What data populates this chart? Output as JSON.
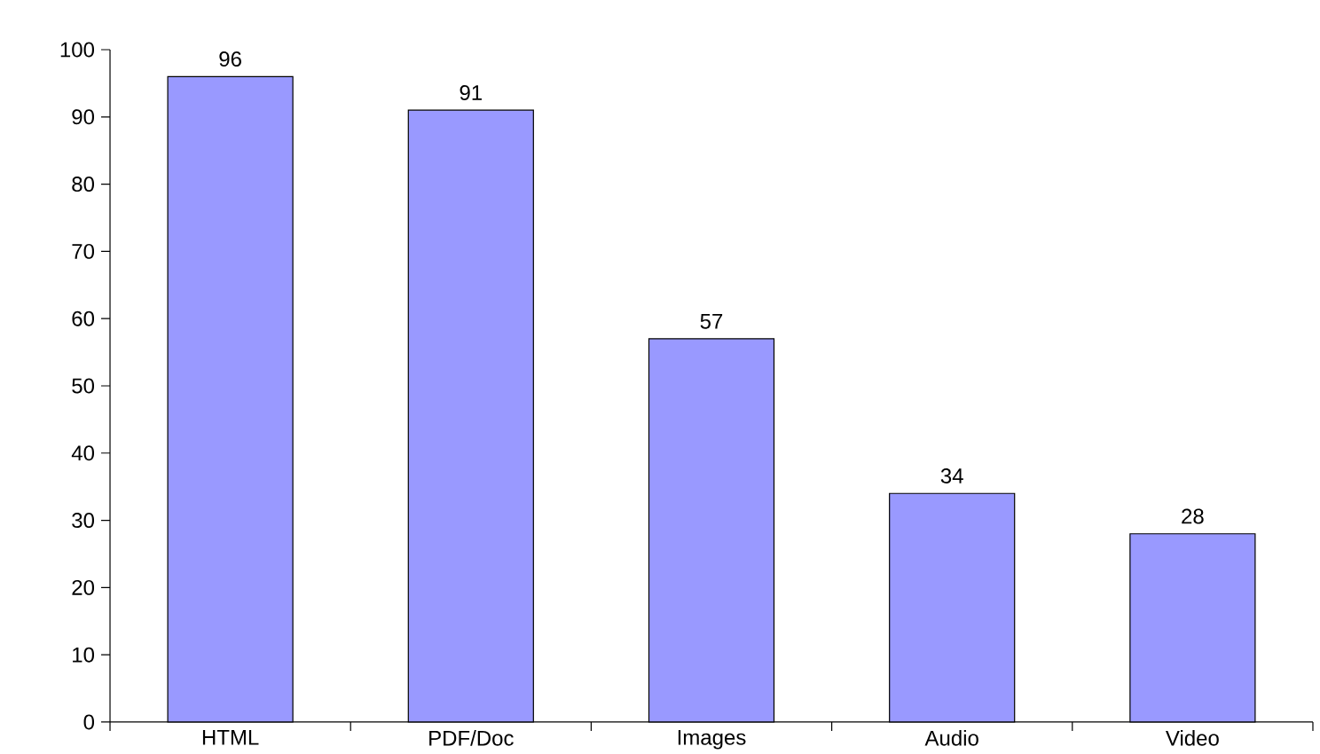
{
  "chart_data": {
    "type": "bar",
    "categories": [
      "HTML",
      "PDF/Doc",
      "Images",
      "Audio",
      "Video"
    ],
    "values": [
      96,
      91,
      57,
      34,
      28
    ],
    "color": "#9999ff",
    "ylim": [
      0,
      100
    ],
    "yticks": [
      0,
      10,
      20,
      30,
      40,
      50,
      60,
      70,
      80,
      90,
      100
    ],
    "data_labels": true
  }
}
